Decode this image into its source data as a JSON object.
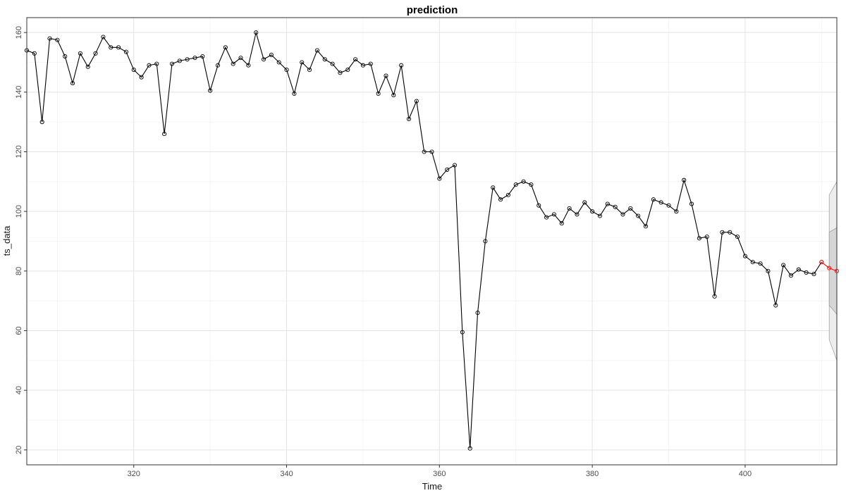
{
  "chart_data": {
    "type": "line",
    "title": "prediction",
    "xlabel": "Time",
    "ylabel": "ts_data",
    "xlim": [
      306,
      412
    ],
    "ylim": [
      15,
      165
    ],
    "x_ticks": [
      320,
      340,
      360,
      380,
      400
    ],
    "y_ticks": [
      20,
      40,
      60,
      80,
      100,
      120,
      140,
      160
    ],
    "grid": true,
    "series": [
      {
        "color": "#000000",
        "x": [
          306,
          307,
          308,
          309,
          310,
          311,
          312,
          313,
          314,
          315,
          316,
          317,
          318,
          319,
          320,
          321,
          322,
          323,
          324,
          325,
          326,
          327,
          328,
          329,
          330,
          331,
          332,
          333,
          334,
          335,
          336,
          337,
          338,
          339,
          340,
          341,
          342,
          343,
          344,
          345,
          346,
          347,
          348,
          349,
          350,
          351,
          352,
          353,
          354,
          355,
          356,
          357,
          358,
          359,
          360,
          361,
          362,
          363,
          364,
          365,
          366,
          367,
          368,
          369,
          370,
          371,
          372,
          373,
          374,
          375,
          376,
          377,
          378,
          379,
          380,
          381,
          382,
          383,
          384,
          385,
          386,
          387,
          388,
          389,
          390,
          391,
          392,
          393,
          394,
          395,
          396,
          397,
          398,
          399,
          400,
          401,
          402,
          403,
          404,
          405,
          406,
          407,
          408,
          409,
          410
        ],
        "values": [
          154,
          153,
          130,
          158,
          157.5,
          152,
          143,
          153,
          148.5,
          153,
          158.5,
          155,
          155,
          153.5,
          147.5,
          145,
          149,
          149.5,
          126,
          149.5,
          150.5,
          151,
          151.5,
          152,
          140.5,
          149,
          155,
          149.5,
          151.5,
          149,
          160,
          151,
          152.5,
          150,
          147.5,
          139.5,
          150,
          147.5,
          154,
          151,
          149.5,
          146.5,
          147.5,
          151,
          149,
          149.5,
          139.5,
          145.5,
          139,
          149,
          131,
          137,
          120,
          120,
          111,
          114,
          115.5,
          59.5,
          20.5,
          66,
          90,
          108,
          104,
          105.5,
          109,
          110,
          109,
          102,
          98,
          99,
          96,
          101,
          99,
          103,
          100,
          98.5,
          102.5,
          101.5,
          99,
          101,
          98.5,
          95,
          104,
          103,
          102,
          100,
          110.5,
          102.5,
          91,
          91.5,
          71.5,
          93,
          93,
          91.5,
          85,
          83,
          82.5,
          80,
          68.5,
          82,
          78.5,
          80.5,
          79.5,
          79,
          83
        ]
      },
      {
        "color": "#ff0000",
        "x": [
          410,
          411,
          412
        ],
        "values": [
          83,
          81,
          80
        ]
      }
    ],
    "bands": [
      {
        "fill": "#ededed",
        "x": [
          411,
          412
        ],
        "lower": [
          57,
          50
        ],
        "upper": [
          105.5,
          110
        ]
      },
      {
        "fill": "#d6d6d6",
        "x": [
          411,
          412
        ],
        "lower": [
          68.5,
          65.5
        ],
        "upper": [
          93,
          94.5
        ]
      }
    ]
  }
}
